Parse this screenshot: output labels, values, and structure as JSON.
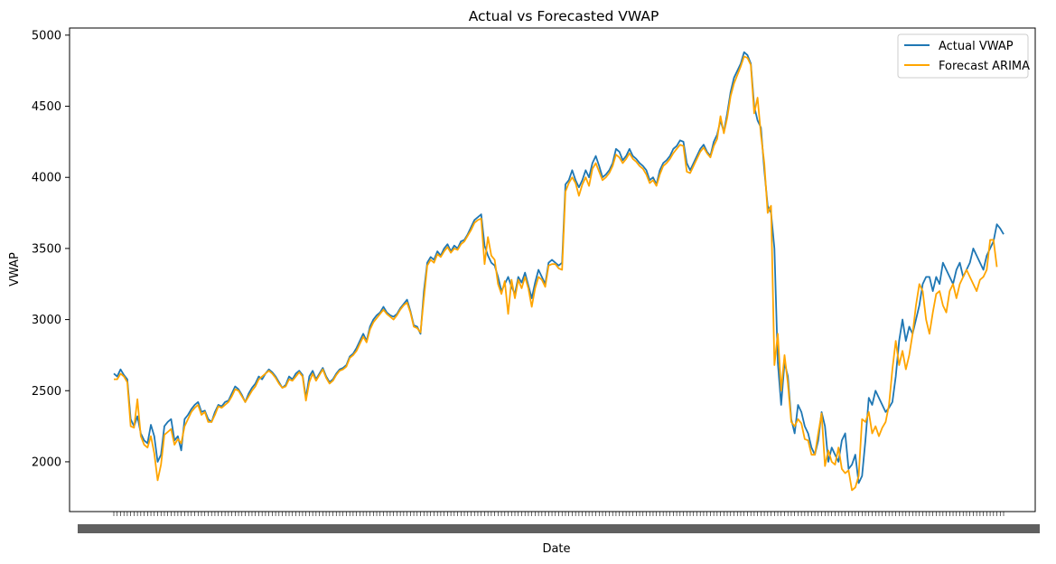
{
  "chart_data": {
    "type": "line",
    "title": "Actual vs Forecasted VWAP",
    "xlabel": "Date",
    "ylabel": "VWAP",
    "ylim": [
      1650,
      5050
    ],
    "yticks": [
      2000,
      2500,
      3000,
      3500,
      4000,
      4500,
      5000
    ],
    "grid": false,
    "legend_position": "top-right",
    "x_tick_labels_note": "dense overlapping date tick labels, unreadable",
    "series": [
      {
        "name": "Actual VWAP",
        "color": "#1f77b4",
        "values": [
          2620,
          2600,
          2650,
          2610,
          2580,
          2300,
          2250,
          2320,
          2200,
          2150,
          2130,
          2260,
          2180,
          2000,
          2050,
          2250,
          2280,
          2300,
          2150,
          2180,
          2080,
          2300,
          2330,
          2370,
          2400,
          2420,
          2350,
          2360,
          2300,
          2280,
          2350,
          2400,
          2390,
          2420,
          2430,
          2480,
          2530,
          2510,
          2470,
          2420,
          2480,
          2520,
          2550,
          2600,
          2580,
          2620,
          2650,
          2630,
          2600,
          2560,
          2520,
          2540,
          2600,
          2580,
          2620,
          2640,
          2610,
          2450,
          2600,
          2640,
          2580,
          2620,
          2660,
          2600,
          2560,
          2580,
          2620,
          2650,
          2660,
          2680,
          2740,
          2760,
          2800,
          2850,
          2900,
          2850,
          2950,
          3000,
          3030,
          3050,
          3090,
          3050,
          3030,
          3020,
          3040,
          3080,
          3110,
          3140,
          3060,
          2960,
          2950,
          2900,
          3200,
          3400,
          3440,
          3420,
          3480,
          3450,
          3500,
          3530,
          3480,
          3520,
          3500,
          3550,
          3560,
          3600,
          3650,
          3700,
          3720,
          3740,
          3520,
          3450,
          3400,
          3380,
          3300,
          3200,
          3250,
          3300,
          3230,
          3180,
          3300,
          3260,
          3330,
          3240,
          3150,
          3260,
          3350,
          3300,
          3250,
          3400,
          3420,
          3400,
          3380,
          3400,
          3950,
          3980,
          4050,
          3980,
          3930,
          3980,
          4050,
          4000,
          4100,
          4150,
          4080,
          4000,
          4020,
          4050,
          4100,
          4200,
          4180,
          4120,
          4150,
          4200,
          4150,
          4130,
          4100,
          4080,
          4050,
          3980,
          4000,
          3950,
          4050,
          4100,
          4120,
          4150,
          4200,
          4220,
          4260,
          4250,
          4100,
          4050,
          4100,
          4150,
          4200,
          4230,
          4180,
          4150,
          4250,
          4300,
          4400,
          4320,
          4450,
          4600,
          4700,
          4750,
          4800,
          4880,
          4860,
          4800,
          4500,
          4400,
          4350,
          4050,
          3800,
          3750,
          3500,
          2700,
          2400,
          2700,
          2600,
          2300,
          2200,
          2400,
          2350,
          2250,
          2200,
          2100,
          2050,
          2150,
          2350,
          2250,
          2000,
          2100,
          2050,
          2000,
          2150,
          2200,
          1950,
          1980,
          2050,
          1850,
          1900,
          2150,
          2450,
          2400,
          2500,
          2450,
          2400,
          2350,
          2380,
          2420,
          2600,
          2850,
          3000,
          2850,
          2950,
          2900,
          3000,
          3100,
          3250,
          3300,
          3300,
          3200,
          3300,
          3250,
          3400,
          3350,
          3300,
          3250,
          3350,
          3400,
          3300,
          3350,
          3400,
          3500,
          3450,
          3400,
          3350,
          3450,
          3500,
          3550,
          3670,
          3640,
          3600
        ]
      },
      {
        "name": "Forecast ARIMA",
        "color": "#ffa500",
        "values": [
          2580,
          2580,
          2620,
          2600,
          2560,
          2250,
          2240,
          2440,
          2180,
          2120,
          2100,
          2180,
          2060,
          1870,
          1980,
          2190,
          2210,
          2230,
          2120,
          2160,
          2130,
          2250,
          2300,
          2350,
          2380,
          2400,
          2330,
          2350,
          2280,
          2280,
          2330,
          2390,
          2380,
          2400,
          2420,
          2460,
          2510,
          2500,
          2460,
          2420,
          2460,
          2500,
          2530,
          2580,
          2600,
          2620,
          2640,
          2620,
          2590,
          2550,
          2520,
          2530,
          2580,
          2570,
          2600,
          2630,
          2600,
          2430,
          2560,
          2620,
          2570,
          2610,
          2650,
          2590,
          2550,
          2570,
          2610,
          2640,
          2650,
          2670,
          2730,
          2750,
          2780,
          2830,
          2880,
          2840,
          2930,
          2980,
          3010,
          3040,
          3070,
          3040,
          3020,
          3000,
          3030,
          3070,
          3100,
          3120,
          3050,
          2950,
          2940,
          2910,
          3150,
          3380,
          3420,
          3400,
          3460,
          3440,
          3480,
          3510,
          3470,
          3500,
          3490,
          3530,
          3550,
          3590,
          3630,
          3680,
          3700,
          3710,
          3390,
          3580,
          3450,
          3420,
          3250,
          3180,
          3270,
          3040,
          3280,
          3150,
          3280,
          3220,
          3300,
          3220,
          3090,
          3220,
          3300,
          3280,
          3230,
          3380,
          3390,
          3390,
          3360,
          3350,
          3900,
          3960,
          4000,
          3960,
          3870,
          3950,
          4000,
          3940,
          4060,
          4100,
          4040,
          3980,
          4000,
          4030,
          4080,
          4160,
          4140,
          4100,
          4130,
          4170,
          4130,
          4110,
          4080,
          4060,
          4020,
          3960,
          3980,
          3940,
          4020,
          4080,
          4100,
          4130,
          4170,
          4200,
          4230,
          4220,
          4040,
          4030,
          4080,
          4130,
          4180,
          4210,
          4170,
          4140,
          4220,
          4270,
          4430,
          4310,
          4420,
          4570,
          4660,
          4720,
          4780,
          4850,
          4840,
          4790,
          4450,
          4560,
          4300,
          4100,
          3750,
          3800,
          2680,
          2900,
          2500,
          2750,
          2550,
          2280,
          2250,
          2300,
          2270,
          2160,
          2150,
          2050,
          2050,
          2200,
          2340,
          1970,
          2080,
          2000,
          1980,
          2100,
          1950,
          1920,
          1940,
          1800,
          1820,
          1900,
          2300,
          2280,
          2350,
          2200,
          2250,
          2180,
          2240,
          2280,
          2400,
          2650,
          2850,
          2680,
          2780,
          2650,
          2750,
          2900,
          3100,
          3250,
          3200,
          3000,
          2900,
          3050,
          3180,
          3200,
          3100,
          3050,
          3200,
          3250,
          3150,
          3250,
          3300,
          3350,
          3300,
          3250,
          3200,
          3280,
          3300,
          3350,
          3560,
          3560,
          3370
        ]
      }
    ]
  }
}
